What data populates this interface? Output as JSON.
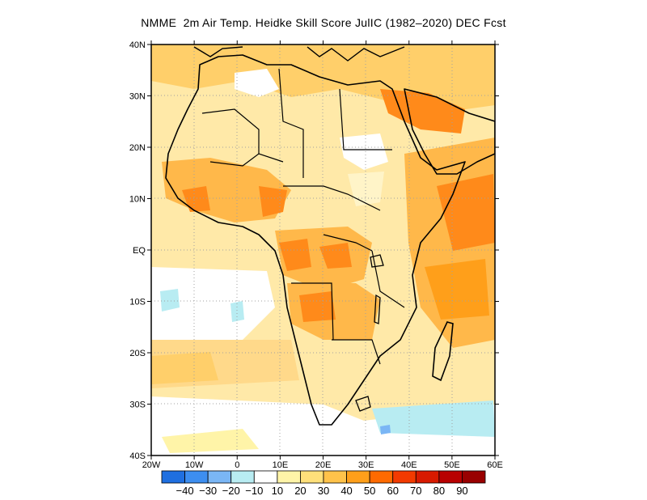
{
  "title": "NMME  2m Air Temp. Heidke Skill Score JulIC (1982–2020) DEC Fcst",
  "lat_labels": [
    "40N",
    "30N",
    "20N",
    "10N",
    "EQ",
    "10S",
    "20S",
    "30S",
    "40S"
  ],
  "lon_labels": [
    "20W",
    "10W",
    "0",
    "10E",
    "20E",
    "30E",
    "40E",
    "50E",
    "60E"
  ],
  "colorbar": {
    "labels": [
      "−40",
      "−30",
      "−20",
      "−10",
      "10",
      "20",
      "30",
      "40",
      "50",
      "60",
      "70",
      "80",
      "90"
    ],
    "colors": [
      "#1f6fe0",
      "#3d8ef0",
      "#7ab6f5",
      "#b8ecf2",
      "#ffffff",
      "#fff4a8",
      "#ffe07a",
      "#ffc24a",
      "#ff9f1a",
      "#ff6a00",
      "#f23a00",
      "#d81a00",
      "#b80000",
      "#990000"
    ]
  },
  "field_colors": {
    "land_base": "#ffd98a",
    "warm": "#ffb84a",
    "hot": "#ff8a1a",
    "cool": "#ffffff",
    "cold": "#b8ecf2"
  }
}
